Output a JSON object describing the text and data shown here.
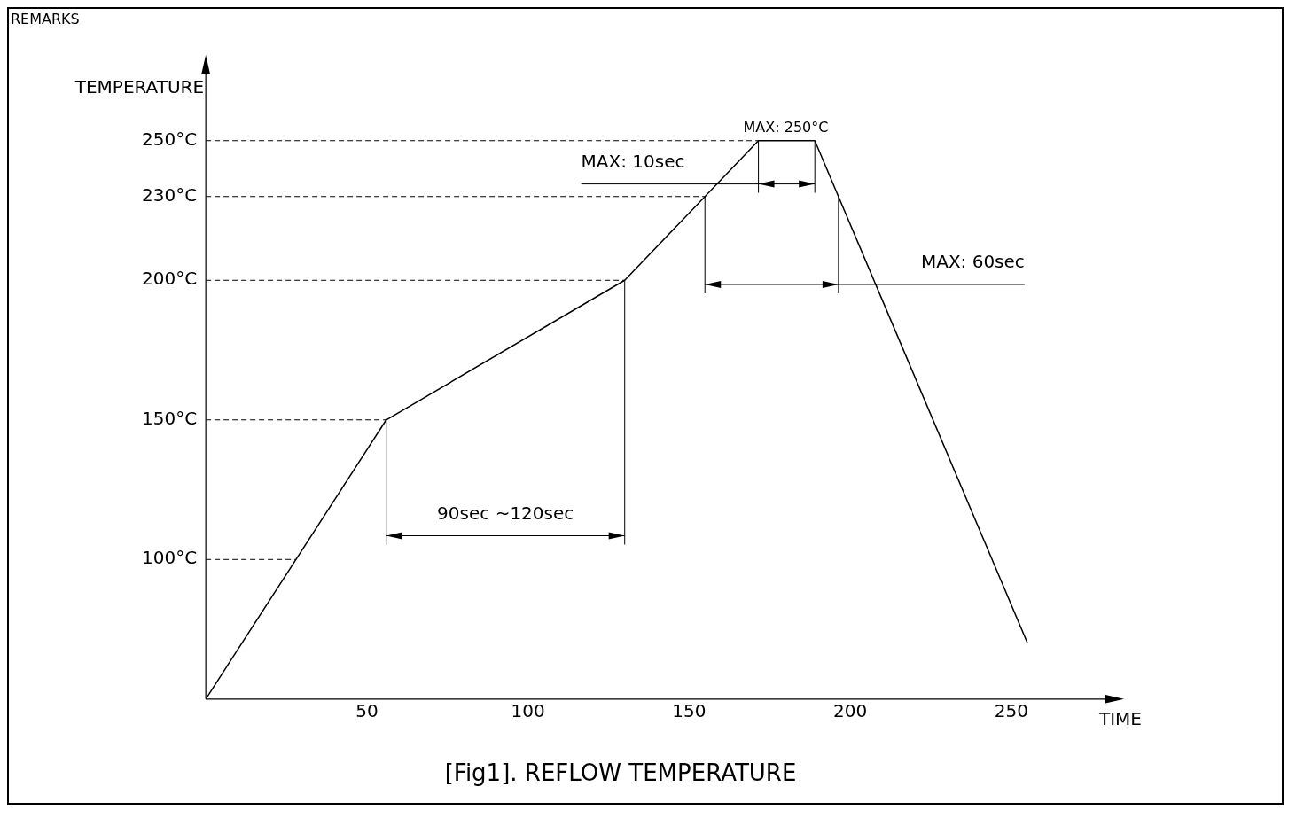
{
  "chart_data": {
    "type": "line",
    "title": "[Fig1]. REFLOW TEMPERATURE",
    "xlabel": "TIME",
    "ylabel": "TEMPERATURE",
    "series": [
      {
        "color": "#000000",
        "x": [
          0,
          56,
          130,
          171.5,
          189,
          255
        ],
        "values": [
          50,
          150,
          200,
          250,
          250,
          70
        ]
      }
    ],
    "xlim": [
      0,
      280
    ],
    "ylim": [
      50,
      275
    ],
    "xticks": [
      50,
      100,
      150,
      200,
      250
    ],
    "yticks": [
      {
        "value": 100,
        "label": "100°C"
      },
      {
        "value": 150,
        "label": "150°C"
      },
      {
        "value": 200,
        "label": "200°C"
      },
      {
        "value": 230,
        "label": "230°C"
      },
      {
        "value": 250,
        "label": "250°C"
      }
    ],
    "ref_lines": [
      {
        "axis": "y",
        "value": 250,
        "line_style": "dashed"
      },
      {
        "axis": "y",
        "value": 230,
        "line_style": "dashed"
      },
      {
        "axis": "y",
        "value": 200,
        "line_style": "dashed"
      },
      {
        "axis": "y",
        "value": 150,
        "line_style": "dashed"
      },
      {
        "axis": "y",
        "value": 100,
        "line_style": "dashed"
      }
    ],
    "annotations": [
      "REMARKS",
      {
        "text": "MAX: 250°C",
        "x": 180,
        "y": 250
      },
      "90sec ~120sec",
      "MAX: 60sec",
      "MAX: 10sec"
    ],
    "grid": false,
    "legend": false,
    "marker": "none",
    "line_style": "solid"
  }
}
